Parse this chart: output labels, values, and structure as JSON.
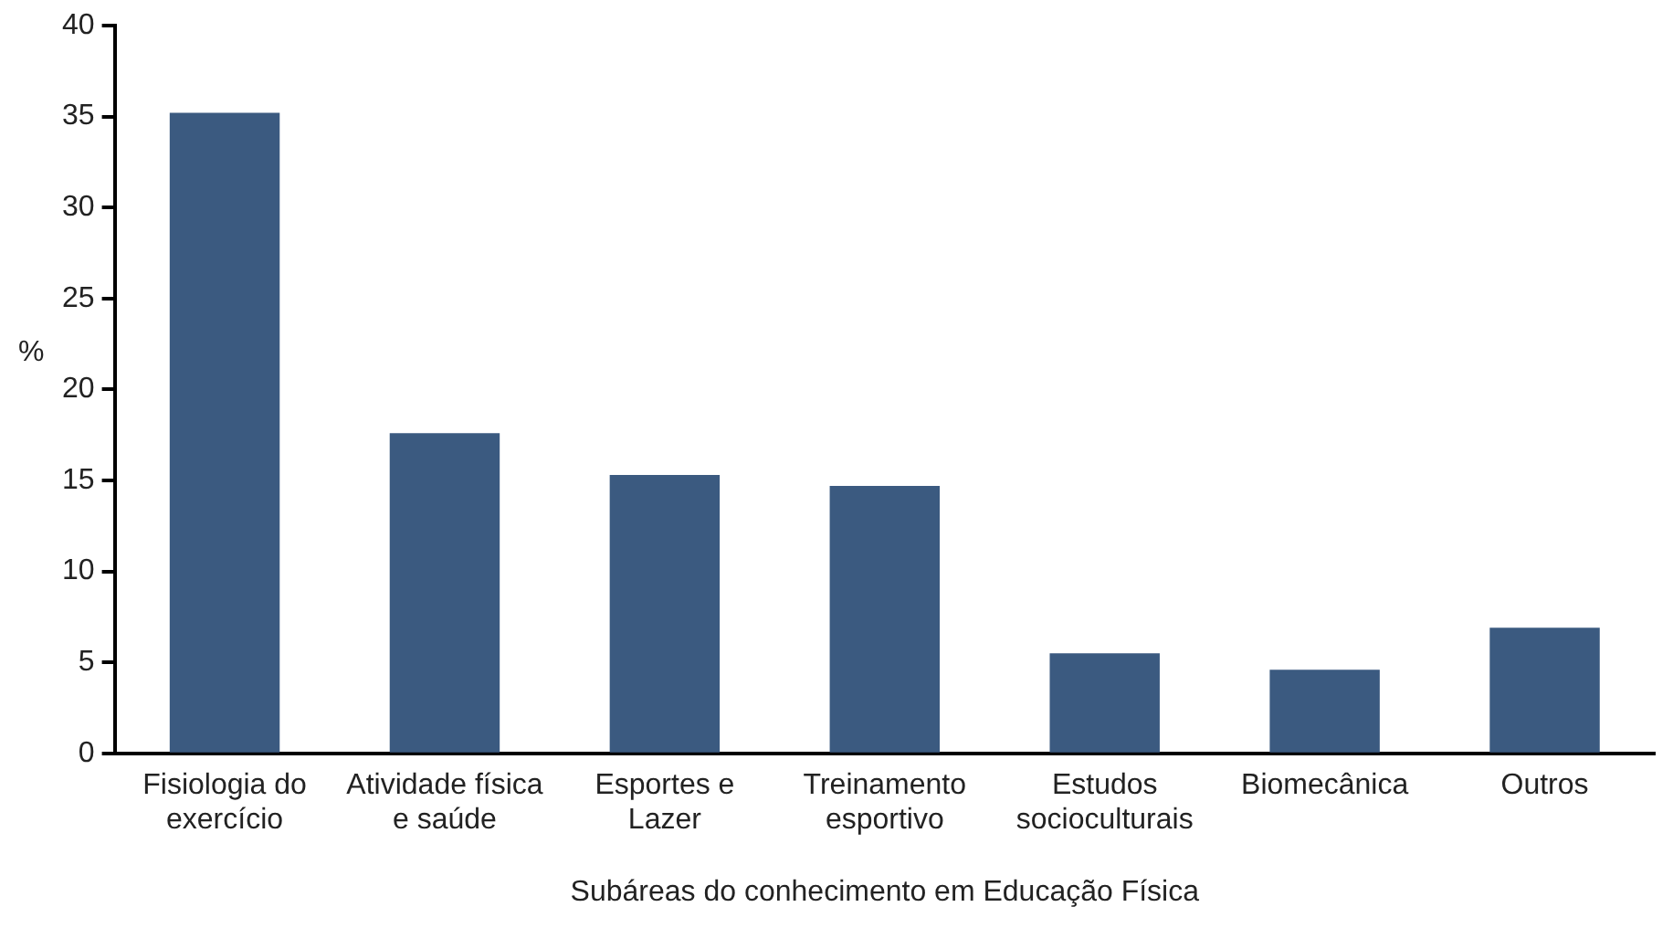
{
  "chart_data": {
    "type": "bar",
    "xlabel": "Subáreas do conhecimento em Educação Física",
    "ylabel": "%",
    "categories": [
      "Fisiologia do exercício",
      "Atividade física e saúde",
      "Esportes e Lazer",
      "Treinamento esportivo",
      "Estudos socioculturais",
      "Biomecânica",
      "Outros"
    ],
    "values": [
      35.2,
      17.6,
      15.3,
      14.7,
      5.5,
      4.6,
      6.9
    ],
    "color": "#3b5a80",
    "ylim": [
      0,
      40
    ],
    "yticks": [
      0,
      5,
      10,
      15,
      20,
      25,
      30,
      35,
      40
    ],
    "grid": false,
    "legend": false
  }
}
